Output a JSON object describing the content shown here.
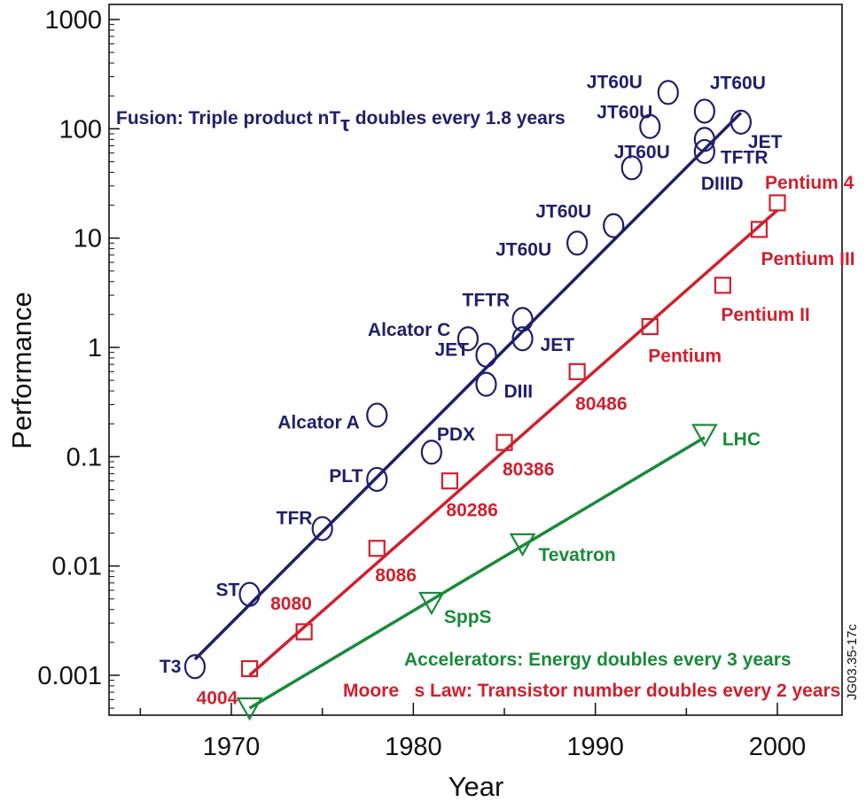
{
  "chart_data": {
    "type": "scatter",
    "xlabel": "Year",
    "ylabel": "Performance",
    "xlim": [
      1962,
      2005
    ],
    "ylim": [
      0.0003,
      1500
    ],
    "yscale": "log",
    "x_ticks": [
      1970,
      1980,
      1990,
      2000
    ],
    "x_tick_labels": [
      "1970",
      "1980",
      "1990",
      "2000"
    ],
    "y_ticks": [
      0.001,
      0.01,
      0.1,
      1,
      10,
      100,
      1000
    ],
    "y_tick_labels": [
      "0.001",
      "0.01",
      "0.1",
      "1",
      "10",
      "100",
      "1000"
    ],
    "grid": false,
    "series": [
      {
        "name": "Fusion",
        "marker": "circle",
        "color": "#1f1f6b",
        "points": [
          {
            "x": 1968,
            "y": 0.0012,
            "label": "T3"
          },
          {
            "x": 1971,
            "y": 0.0055,
            "label": "ST"
          },
          {
            "x": 1975,
            "y": 0.022,
            "label": "TFR"
          },
          {
            "x": 1978,
            "y": 0.062,
            "label": "PLT"
          },
          {
            "x": 1978,
            "y": 0.24,
            "label": "Alcator A"
          },
          {
            "x": 1981,
            "y": 0.11,
            "label": "PDX"
          },
          {
            "x": 1983,
            "y": 1.2,
            "label": "Alcator C"
          },
          {
            "x": 1984,
            "y": 0.85,
            "label": "JET"
          },
          {
            "x": 1984,
            "y": 0.46,
            "label": "DIII"
          },
          {
            "x": 1986,
            "y": 1.8,
            "label": "TFTR"
          },
          {
            "x": 1986,
            "y": 1.2,
            "label": "JET"
          },
          {
            "x": 1989,
            "y": 9,
            "label": "JT60U"
          },
          {
            "x": 1991,
            "y": 13,
            "label": "JT60U"
          },
          {
            "x": 1992,
            "y": 44,
            "label": "JT60U"
          },
          {
            "x": 1993,
            "y": 105,
            "label": "JT60U"
          },
          {
            "x": 1994,
            "y": 215,
            "label": "JT60U"
          },
          {
            "x": 1996,
            "y": 145,
            "label": "JT60U"
          },
          {
            "x": 1996,
            "y": 80,
            "label": "TFTR"
          },
          {
            "x": 1996,
            "y": 62,
            "label": "DIIID"
          },
          {
            "x": 1998,
            "y": 115,
            "label": "JET"
          }
        ],
        "trend": [
          {
            "x": 1968,
            "y": 0.0014
          },
          {
            "x": 1998,
            "y": 140
          }
        ]
      },
      {
        "name": "Moore",
        "marker": "square",
        "color": "#d0202e",
        "points": [
          {
            "x": 1971,
            "y": 0.00115,
            "label": "4004"
          },
          {
            "x": 1974,
            "y": 0.0025,
            "label": "8080"
          },
          {
            "x": 1978,
            "y": 0.0145,
            "label": "8086"
          },
          {
            "x": 1982,
            "y": 0.06,
            "label": "80286"
          },
          {
            "x": 1985,
            "y": 0.135,
            "label": "80386"
          },
          {
            "x": 1989,
            "y": 0.6,
            "label": "80486"
          },
          {
            "x": 1993,
            "y": 1.55,
            "label": "Pentium"
          },
          {
            "x": 1997,
            "y": 3.7,
            "label": "Pentium II"
          },
          {
            "x": 1999,
            "y": 12,
            "label": "Pentium III"
          },
          {
            "x": 2000,
            "y": 21,
            "label": "Pentium 4"
          }
        ],
        "trend": [
          {
            "x": 1971,
            "y": 0.001
          },
          {
            "x": 2000,
            "y": 18
          }
        ]
      },
      {
        "name": "Accelerators",
        "marker": "triangle-down",
        "color": "#1a8a3a",
        "points": [
          {
            "x": 1971,
            "y": 0.00052,
            "label": ""
          },
          {
            "x": 1981,
            "y": 0.0048,
            "label": "SppS"
          },
          {
            "x": 1986,
            "y": 0.0165,
            "label": "Tevatron"
          },
          {
            "x": 1996,
            "y": 0.165,
            "label": "LHC"
          }
        ],
        "trend": [
          {
            "x": 1971,
            "y": 0.0005
          },
          {
            "x": 1996,
            "y": 0.15
          }
        ]
      }
    ],
    "annotations": [
      {
        "text": "Fusion: Triple product nT",
        "sub": "τ",
        "tail": " doubles every 1.8 years",
        "series": "Fusion"
      },
      {
        "text": "Accelerators: Energy doubles every 3 years",
        "series": "Accelerators"
      },
      {
        "text": "Moore   s Law: Transistor number doubles every 2 years",
        "series": "Moore"
      }
    ],
    "side_code": "JG03.35-17c"
  }
}
